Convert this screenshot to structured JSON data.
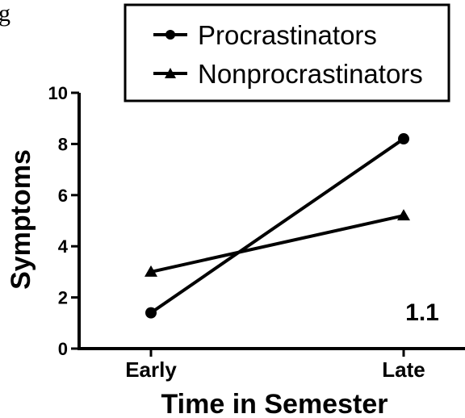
{
  "header": {
    "corner_fragment": "g"
  },
  "chart_data": {
    "type": "line",
    "title": "",
    "xlabel": "Time in Semester",
    "ylabel": "Symptoms",
    "categories": [
      "Early",
      "Late"
    ],
    "ylim": [
      0,
      10
    ],
    "yticks": [
      "0",
      "2",
      "4",
      "6",
      "8",
      "10"
    ],
    "grid": false,
    "legend": "top",
    "annotation": "1.1",
    "series": [
      {
        "name": "Procrastinators",
        "marker": "circle",
        "values": [
          1.4,
          8.2
        ]
      },
      {
        "name": "Nonprocrastinators",
        "marker": "triangle",
        "values": [
          3.0,
          5.2
        ]
      }
    ],
    "colors": {
      "line": "#000000",
      "background": "#ffffff"
    }
  }
}
